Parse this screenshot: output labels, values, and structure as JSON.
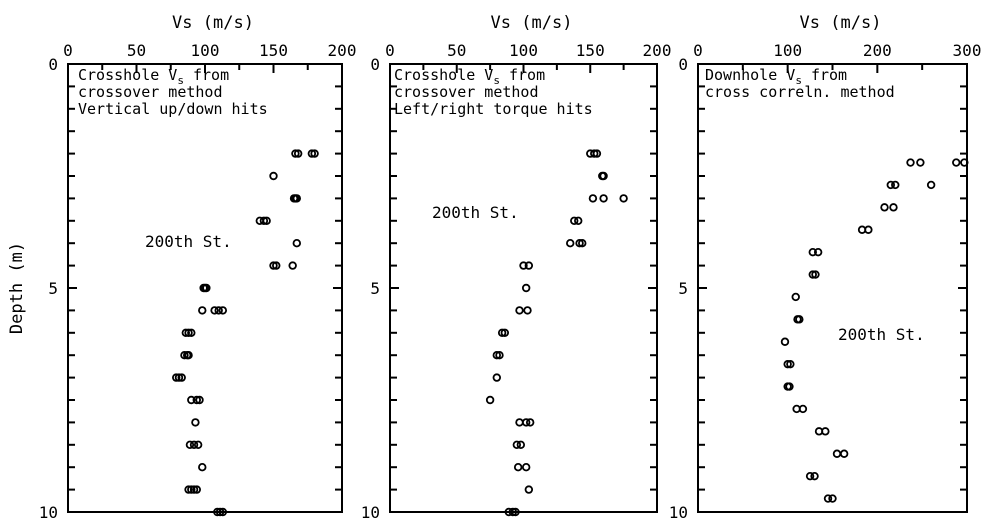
{
  "y_axis_label": "Depth (m)",
  "chart_data": [
    {
      "type": "scatter",
      "title": "",
      "xlabel": "Vs (m/s)",
      "ylabel": "Depth (m)",
      "xlim": [
        0,
        200
      ],
      "ylim": [
        0,
        10
      ],
      "x_ticks": [
        0,
        50,
        100,
        150,
        200
      ],
      "y_ticks": [
        0,
        5,
        10
      ],
      "annotation_lines": [
        "Crosshole V",
        "crossover method",
        "Vertical up/down hits"
      ],
      "annotation_sub": "s",
      "annotation_tail": " from",
      "site_label": "200th St.",
      "points": [
        [
          166,
          2
        ],
        [
          168,
          2
        ],
        [
          178,
          2
        ],
        [
          180,
          2
        ],
        [
          150,
          2.5
        ],
        [
          165,
          3
        ],
        [
          166,
          3
        ],
        [
          167,
          3
        ],
        [
          140,
          3.5
        ],
        [
          143,
          3.5
        ],
        [
          145,
          3.5
        ],
        [
          167,
          4
        ],
        [
          150,
          4.5
        ],
        [
          152,
          4.5
        ],
        [
          164,
          4.5
        ],
        [
          99,
          5
        ],
        [
          100,
          5
        ],
        [
          101,
          5
        ],
        [
          98,
          5.5
        ],
        [
          107,
          5.5
        ],
        [
          110,
          5.5
        ],
        [
          113,
          5.5
        ],
        [
          86,
          6
        ],
        [
          88,
          6
        ],
        [
          90,
          6
        ],
        [
          85,
          6.5
        ],
        [
          87,
          6.5
        ],
        [
          88,
          6.5
        ],
        [
          79,
          7
        ],
        [
          81,
          7
        ],
        [
          83,
          7
        ],
        [
          90,
          7.5
        ],
        [
          94,
          7.5
        ],
        [
          96,
          7.5
        ],
        [
          93,
          8
        ],
        [
          89,
          8.5
        ],
        [
          92,
          8.5
        ],
        [
          95,
          8.5
        ],
        [
          98,
          9
        ],
        [
          88,
          9.5
        ],
        [
          90,
          9.5
        ],
        [
          92,
          9.5
        ],
        [
          94,
          9.5
        ],
        [
          109,
          10
        ],
        [
          111,
          10
        ],
        [
          113,
          10
        ]
      ]
    },
    {
      "type": "scatter",
      "title": "",
      "xlabel": "Vs (m/s)",
      "ylabel": "",
      "xlim": [
        0,
        200
      ],
      "ylim": [
        0,
        10
      ],
      "x_ticks": [
        0,
        50,
        100,
        150,
        200
      ],
      "y_ticks": [
        0,
        5,
        10
      ],
      "annotation_lines": [
        "Crosshole V",
        "crossover method",
        "Left/right torque hits"
      ],
      "annotation_sub": "s",
      "annotation_tail": " from",
      "site_label": "200th St.",
      "points": [
        [
          150,
          2
        ],
        [
          153,
          2
        ],
        [
          155,
          2
        ],
        [
          159,
          2.5
        ],
        [
          160,
          2.5
        ],
        [
          152,
          3
        ],
        [
          160,
          3
        ],
        [
          175,
          3
        ],
        [
          138,
          3.5
        ],
        [
          141,
          3.5
        ],
        [
          135,
          4
        ],
        [
          142,
          4
        ],
        [
          144,
          4
        ],
        [
          100,
          4.5
        ],
        [
          104,
          4.5
        ],
        [
          102,
          5
        ],
        [
          97,
          5.5
        ],
        [
          103,
          5.5
        ],
        [
          84,
          6
        ],
        [
          86,
          6
        ],
        [
          80,
          6.5
        ],
        [
          82,
          6.5
        ],
        [
          80,
          7
        ],
        [
          75,
          7.5
        ],
        [
          97,
          8
        ],
        [
          102,
          8
        ],
        [
          105,
          8
        ],
        [
          95,
          8.5
        ],
        [
          98,
          8.5
        ],
        [
          96,
          9
        ],
        [
          102,
          9
        ],
        [
          104,
          9.5
        ],
        [
          89,
          10
        ],
        [
          92,
          10
        ],
        [
          94,
          10
        ]
      ]
    },
    {
      "type": "scatter",
      "title": "",
      "xlabel": "Vs (m/s)",
      "ylabel": "",
      "xlim": [
        0,
        300
      ],
      "ylim": [
        0,
        10
      ],
      "x_ticks": [
        0,
        100,
        200,
        300
      ],
      "y_ticks": [
        0,
        5,
        10
      ],
      "annotation_lines": [
        "Downhole V",
        "cross correln. method"
      ],
      "annotation_sub": "s",
      "annotation_tail": " from",
      "site_label": "200th St.",
      "points": [
        [
          237,
          2.2
        ],
        [
          248,
          2.2
        ],
        [
          288,
          2.2
        ],
        [
          297,
          2.2
        ],
        [
          215,
          2.7
        ],
        [
          220,
          2.7
        ],
        [
          260,
          2.7
        ],
        [
          208,
          3.2
        ],
        [
          218,
          3.2
        ],
        [
          183,
          3.7
        ],
        [
          190,
          3.7
        ],
        [
          128,
          4.2
        ],
        [
          134,
          4.2
        ],
        [
          128,
          4.7
        ],
        [
          131,
          4.7
        ],
        [
          109,
          5.2
        ],
        [
          111,
          5.7
        ],
        [
          113,
          5.7
        ],
        [
          97,
          6.2
        ],
        [
          100,
          6.7
        ],
        [
          103,
          6.7
        ],
        [
          100,
          7.2
        ],
        [
          102,
          7.2
        ],
        [
          110,
          7.7
        ],
        [
          117,
          7.7
        ],
        [
          135,
          8.2
        ],
        [
          142,
          8.2
        ],
        [
          155,
          8.7
        ],
        [
          163,
          8.7
        ],
        [
          125,
          9.2
        ],
        [
          130,
          9.2
        ],
        [
          145,
          9.7
        ],
        [
          150,
          9.7
        ]
      ]
    }
  ]
}
